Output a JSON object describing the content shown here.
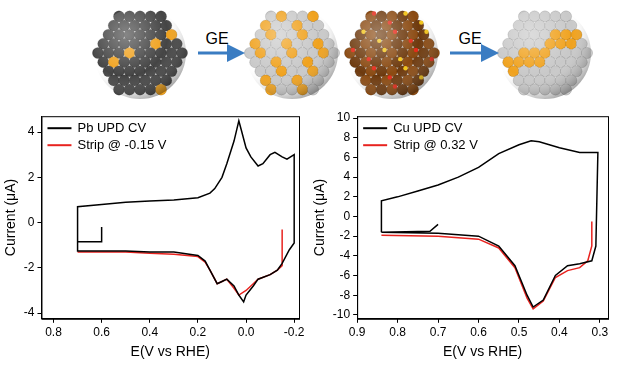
{
  "chart_data": [
    {
      "type": "line",
      "xlabel": "E(V vs RHE)",
      "ylabel": "Current (μA)",
      "xlim": [
        0.85,
        -0.22
      ],
      "xticks": [
        0.8,
        0.6,
        0.4,
        0.2,
        {
          "value": 0,
          "label": "0.0"
        },
        -0.2
      ],
      "ylim": [
        -4.25,
        4.7
      ],
      "yticks": [
        -4,
        -2,
        0,
        2,
        4
      ],
      "grid": false,
      "legend": "upper left",
      "series": [
        {
          "name": "Pb UPD CV",
          "color": "#000000",
          "x": [
            0.6,
            0.6,
            0.7,
            0.7,
            0.6,
            0.5,
            0.4,
            0.3,
            0.2,
            0.17,
            0.15,
            0.12,
            0.1,
            0.08,
            0.05,
            0.03,
            0.01,
            0.0,
            -0.03,
            -0.05,
            -0.1,
            -0.13,
            -0.15,
            -0.18,
            -0.2,
            -0.2,
            -0.17,
            -0.15,
            -0.12,
            -0.1,
            -0.07,
            -0.05,
            -0.02,
            0.0,
            0.02,
            0.03,
            0.05,
            0.08,
            0.1,
            0.13,
            0.15,
            0.2,
            0.3,
            0.4,
            0.5,
            0.6,
            0.7,
            0.7
          ],
          "values": [
            -0.2,
            -0.85,
            -0.85,
            -1.25,
            -1.25,
            -1.25,
            -1.3,
            -1.3,
            -1.45,
            -1.7,
            -2.1,
            -2.7,
            -2.6,
            -2.5,
            -2.8,
            -3.2,
            -3.5,
            -3.2,
            -2.8,
            -2.5,
            -2.3,
            -2.1,
            -1.8,
            -1.2,
            -0.9,
            3.0,
            2.8,
            2.9,
            3.1,
            3.0,
            2.6,
            2.5,
            2.9,
            3.3,
            4.1,
            4.5,
            3.6,
            2.6,
            2.0,
            1.5,
            1.3,
            1.1,
            1.0,
            0.95,
            0.9,
            0.8,
            0.7,
            -0.9
          ]
        },
        {
          "name": "Strip @ -0.15 V",
          "color": "#e8231f",
          "x": [
            0.7,
            0.6,
            0.5,
            0.4,
            0.3,
            0.2,
            0.17,
            0.15,
            0.12,
            0.1,
            0.08,
            0.05,
            0.03,
            0.0,
            -0.03,
            -0.05,
            -0.1,
            -0.13,
            -0.15,
            -0.15
          ],
          "values": [
            -1.3,
            -1.3,
            -1.3,
            -1.35,
            -1.4,
            -1.5,
            -1.75,
            -2.1,
            -2.7,
            -2.6,
            -2.5,
            -2.9,
            -3.2,
            -3.0,
            -2.7,
            -2.5,
            -2.3,
            -2.1,
            -1.9,
            -0.3
          ]
        }
      ]
    },
    {
      "type": "line",
      "xlabel": "E(V vs RHE)",
      "ylabel": "Current (μA)",
      "xlim": [
        0.9,
        0.28
      ],
      "xticks": [
        0.9,
        0.8,
        0.7,
        0.6,
        0.5,
        0.4,
        0.3
      ],
      "ylim": [
        -10.4,
        10.2
      ],
      "yticks": [
        -10,
        -8,
        -6,
        -4,
        -2,
        0,
        2,
        4,
        6,
        8,
        10
      ],
      "grid": false,
      "legend": "upper left",
      "series": [
        {
          "name": "Cu UPD CV",
          "color": "#000000",
          "x": [
            0.7,
            0.72,
            0.84,
            0.84,
            0.7,
            0.6,
            0.55,
            0.51,
            0.48,
            0.465,
            0.44,
            0.41,
            0.38,
            0.35,
            0.32,
            0.31,
            0.305,
            0.31,
            0.35,
            0.4,
            0.45,
            0.47,
            0.5,
            0.55,
            0.6,
            0.65,
            0.7,
            0.75,
            0.8,
            0.84,
            0.84
          ],
          "values": [
            -0.8,
            -1.5,
            -1.6,
            -1.6,
            -1.7,
            -2.0,
            -3.0,
            -5.0,
            -8.0,
            -9.2,
            -8.5,
            -6.0,
            -5.0,
            -4.8,
            -4.5,
            -3.0,
            6.5,
            6.5,
            6.5,
            7.0,
            7.6,
            7.7,
            7.3,
            6.4,
            5.0,
            4.0,
            3.2,
            2.6,
            2.0,
            1.6,
            -1.6
          ]
        },
        {
          "name": "Strip @ 0.32 V",
          "color": "#e8231f",
          "x": [
            0.84,
            0.7,
            0.6,
            0.55,
            0.51,
            0.48,
            0.465,
            0.44,
            0.41,
            0.38,
            0.35,
            0.33,
            0.32,
            0.32
          ],
          "values": [
            -1.9,
            -2.0,
            -2.3,
            -3.2,
            -5.2,
            -8.3,
            -9.4,
            -8.6,
            -6.2,
            -5.5,
            -5.2,
            -4.5,
            -3.0,
            -0.5
          ]
        }
      ]
    }
  ],
  "illustrations": [
    {
      "label": "GE"
    },
    {
      "label": "GE"
    }
  ]
}
